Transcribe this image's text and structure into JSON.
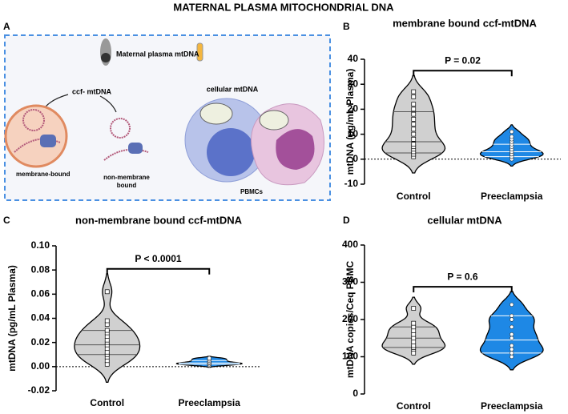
{
  "title": "MATERNAL PLASMA MITOCHONDRIAL DNA",
  "diagram": {
    "panel": "A",
    "source": "Maternal plasma mtDNA",
    "ccf": "ccf- mtDNA",
    "cellular": "cellular mtDNA",
    "membrane_bound": "membrane-bound",
    "non_membrane_bound": [
      "non-membrane",
      "bound"
    ],
    "cells": "PBMCs"
  },
  "chart_data": [
    {
      "type": "violin",
      "panel": "B",
      "title": "membrane bound ccf-mtDNA",
      "ylabel": "mtDNA (pg/mL Plasma)",
      "annotation": "P = 0.02",
      "categories": [
        "Control",
        "Preeclampsia"
      ],
      "ylim": [
        -10,
        40
      ],
      "yticks": [
        -10,
        0,
        10,
        20,
        30,
        40
      ],
      "reference_line": 0,
      "groups": [
        {
          "color": "#d0d0d0",
          "marker": "square",
          "points": [
            1,
            2,
            3,
            4,
            5,
            6,
            8,
            10,
            12,
            14,
            16,
            18,
            20,
            22,
            25,
            27
          ],
          "quartiles": [
            2.5,
            7,
            19
          ]
        },
        {
          "color": "#1e88e5",
          "marker": "circle",
          "points": [
            0,
            1,
            1,
            2,
            2,
            3,
            3,
            4,
            5,
            6,
            7,
            8,
            9,
            11
          ],
          "quartiles": [
            1,
            3,
            6
          ]
        }
      ]
    },
    {
      "type": "violin",
      "panel": "C",
      "title": "non-membrane bound ccf-mtDNA",
      "ylabel": "mtDNA (pg/mL Plasma)",
      "annotation": "P < 0.0001",
      "categories": [
        "Control",
        "Preeclampsia"
      ],
      "ylim": [
        -0.02,
        0.1
      ],
      "yticks": [
        -0.02,
        {
          "value": 0,
          "label": "0.00"
        },
        0.02,
        0.04,
        0.06,
        0.08,
        {
          "value": 0.1,
          "label": "0.10"
        }
      ],
      "reference_line": 0,
      "groups": [
        {
          "color": "#d0d0d0",
          "marker": "square",
          "points": [
            0.002,
            0.005,
            0.008,
            0.01,
            0.012,
            0.015,
            0.018,
            0.02,
            0.022,
            0.025,
            0.028,
            0.03,
            0.035,
            0.038,
            0.062
          ],
          "quartiles": [
            0.01,
            0.018,
            0.03
          ]
        },
        {
          "color": "#1e88e5",
          "marker": "circle",
          "points": [
            0.001,
            0.002,
            0.002,
            0.003,
            0.003,
            0.004,
            0.005,
            0.006,
            0.007
          ],
          "quartiles": [
            0.002,
            0.003,
            0.005
          ]
        }
      ]
    },
    {
      "type": "violin",
      "panel": "D",
      "title": "cellular mtDNA",
      "ylabel": "mtDNA copies/Ceq PBMC",
      "annotation": "P = 0.6",
      "categories": [
        "Control",
        "Preeclampsia"
      ],
      "ylim": [
        0,
        400
      ],
      "yticks": [
        0,
        100,
        200,
        300,
        400
      ],
      "groups": [
        {
          "color": "#d0d0d0",
          "marker": "square",
          "points": [
            110,
            120,
            125,
            130,
            140,
            150,
            160,
            170,
            180,
            190,
            230
          ],
          "quartiles": [
            125,
            150,
            180
          ]
        },
        {
          "color": "#1e88e5",
          "marker": "circle",
          "points": [
            100,
            110,
            120,
            130,
            150,
            160,
            180,
            200,
            210,
            240
          ],
          "quartiles": [
            110,
            145,
            210
          ]
        }
      ]
    }
  ]
}
